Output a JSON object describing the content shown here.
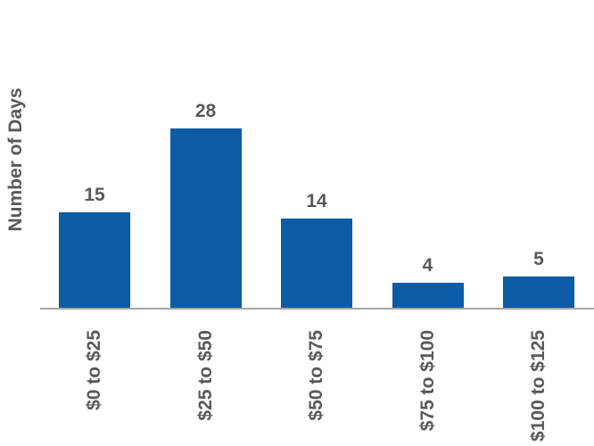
{
  "chart_data": {
    "type": "bar",
    "categories": [
      "$0 to $25",
      "$25 to $50",
      "$50 to $75",
      "$75 to $100",
      "$100 to $125"
    ],
    "values": [
      15,
      28,
      14,
      4,
      5
    ],
    "data_labels": [
      "15",
      "28",
      "14",
      "4",
      "5"
    ],
    "title": "",
    "xlabel": "",
    "ylabel": "Number of Days",
    "ylim": [
      0,
      30
    ],
    "grid": false,
    "legend": false,
    "data_labels_shown": true,
    "colors": {
      "bar": "#0B5CA5",
      "text": "#595959",
      "axis_line": "#A5A5A5",
      "background": "#FFFFFF"
    }
  }
}
